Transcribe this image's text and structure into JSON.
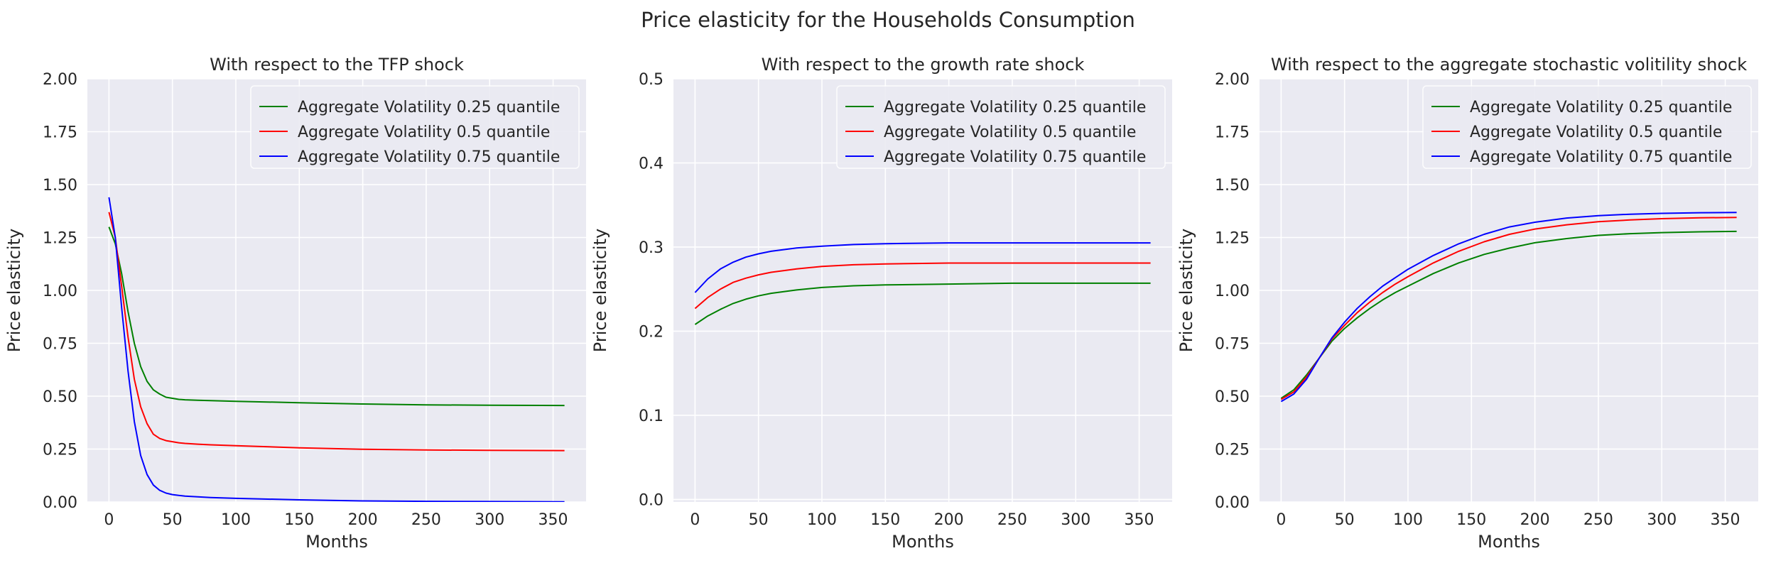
{
  "figure": {
    "suptitle": "Price elasticity for the Households Consumption"
  },
  "colors": {
    "background": "#eaeaf2",
    "grid": "#ffffff",
    "q25": "#008000",
    "q50": "#ff0000",
    "q75": "#0000ff"
  },
  "chart_data": [
    {
      "type": "line",
      "title": "With respect to the TFP shock",
      "xlabel": "Months",
      "ylabel": "Price elasticity",
      "xlim": [
        -17,
        376
      ],
      "ylim": [
        0,
        2.0
      ],
      "xticks": [
        0,
        50,
        100,
        150,
        200,
        250,
        300,
        350
      ],
      "xtick_labels": [
        "0",
        "50",
        "100",
        "150",
        "200",
        "250",
        "300",
        "350"
      ],
      "yticks": [
        0,
        0.25,
        0.5,
        0.75,
        1.0,
        1.25,
        1.5,
        1.75,
        2.0
      ],
      "ytick_labels": [
        "0.00",
        "0.25",
        "0.50",
        "0.75",
        "1.00",
        "1.25",
        "1.50",
        "1.75",
        "2.00"
      ],
      "grid": true,
      "legend": "top-right",
      "x": [
        0,
        5,
        10,
        15,
        20,
        25,
        30,
        35,
        40,
        45,
        50,
        55,
        60,
        70,
        80,
        100,
        150,
        200,
        250,
        300,
        359
      ],
      "series": [
        {
          "name": "Aggregate Volatility 0.25 quantile",
          "color": "#008000",
          "values": [
            1.3,
            1.22,
            1.08,
            0.9,
            0.75,
            0.64,
            0.57,
            0.53,
            0.51,
            0.495,
            0.49,
            0.485,
            0.483,
            0.481,
            0.479,
            0.476,
            0.469,
            0.463,
            0.459,
            0.457,
            0.456
          ]
        },
        {
          "name": "Aggregate Volatility 0.5 quantile",
          "color": "#ff0000",
          "values": [
            1.37,
            1.25,
            1.02,
            0.78,
            0.58,
            0.45,
            0.37,
            0.32,
            0.3,
            0.29,
            0.285,
            0.28,
            0.277,
            0.273,
            0.27,
            0.266,
            0.256,
            0.249,
            0.246,
            0.244,
            0.243
          ]
        },
        {
          "name": "Aggregate Volatility 0.75 quantile",
          "color": "#0000ff",
          "values": [
            1.44,
            1.25,
            0.92,
            0.62,
            0.38,
            0.22,
            0.13,
            0.08,
            0.055,
            0.042,
            0.035,
            0.031,
            0.028,
            0.024,
            0.021,
            0.017,
            0.01,
            0.005,
            0.003,
            0.002,
            0.001
          ]
        }
      ]
    },
    {
      "type": "line",
      "title": "With respect to the growth rate shock",
      "xlabel": "Months",
      "ylabel": "Price elasticity",
      "xlim": [
        -17,
        376
      ],
      "ylim": [
        -0.003,
        0.5
      ],
      "xticks": [
        0,
        50,
        100,
        150,
        200,
        250,
        300,
        350
      ],
      "xtick_labels": [
        "0",
        "50",
        "100",
        "150",
        "200",
        "250",
        "300",
        "350"
      ],
      "yticks": [
        0,
        0.1,
        0.2,
        0.3,
        0.4,
        0.5
      ],
      "ytick_labels": [
        "0.0",
        "0.1",
        "0.2",
        "0.3",
        "0.4",
        "0.5"
      ],
      "grid": true,
      "legend": "top-right",
      "x": [
        0,
        10,
        20,
        30,
        40,
        50,
        60,
        80,
        100,
        125,
        150,
        200,
        250,
        300,
        359
      ],
      "series": [
        {
          "name": "Aggregate Volatility 0.25 quantile",
          "color": "#008000",
          "values": [
            0.208,
            0.218,
            0.226,
            0.233,
            0.238,
            0.242,
            0.245,
            0.249,
            0.252,
            0.254,
            0.255,
            0.256,
            0.257,
            0.257,
            0.257
          ]
        },
        {
          "name": "Aggregate Volatility 0.5 quantile",
          "color": "#ff0000",
          "values": [
            0.227,
            0.24,
            0.25,
            0.258,
            0.263,
            0.267,
            0.27,
            0.274,
            0.277,
            0.279,
            0.28,
            0.281,
            0.281,
            0.281,
            0.281
          ]
        },
        {
          "name": "Aggregate Volatility 0.75 quantile",
          "color": "#0000ff",
          "values": [
            0.246,
            0.262,
            0.274,
            0.282,
            0.288,
            0.292,
            0.295,
            0.299,
            0.301,
            0.303,
            0.304,
            0.305,
            0.305,
            0.305,
            0.305
          ]
        }
      ]
    },
    {
      "type": "line",
      "title": "With respect to the aggregate stochastic volitility shock",
      "xlabel": "Months",
      "ylabel": "Price elasticity",
      "xlim": [
        -17,
        376
      ],
      "ylim": [
        0,
        2.0
      ],
      "xticks": [
        0,
        50,
        100,
        150,
        200,
        250,
        300,
        350
      ],
      "xtick_labels": [
        "0",
        "50",
        "100",
        "150",
        "200",
        "250",
        "300",
        "350"
      ],
      "yticks": [
        0,
        0.25,
        0.5,
        0.75,
        1.0,
        1.25,
        1.5,
        1.75,
        2.0
      ],
      "ytick_labels": [
        "0.00",
        "0.25",
        "0.50",
        "0.75",
        "1.00",
        "1.25",
        "1.50",
        "1.75",
        "2.00"
      ],
      "grid": true,
      "legend": "top-right",
      "x": [
        0,
        10,
        20,
        30,
        40,
        50,
        60,
        70,
        80,
        90,
        100,
        120,
        140,
        160,
        180,
        200,
        225,
        250,
        275,
        300,
        330,
        359
      ],
      "series": [
        {
          "name": "Aggregate Volatility 0.25 quantile",
          "color": "#008000",
          "values": [
            0.49,
            0.53,
            0.6,
            0.68,
            0.76,
            0.82,
            0.87,
            0.915,
            0.955,
            0.99,
            1.02,
            1.08,
            1.13,
            1.17,
            1.2,
            1.225,
            1.245,
            1.26,
            1.268,
            1.273,
            1.277,
            1.279
          ]
        },
        {
          "name": "Aggregate Volatility 0.5 quantile",
          "color": "#ff0000",
          "values": [
            0.485,
            0.52,
            0.59,
            0.68,
            0.77,
            0.835,
            0.895,
            0.945,
            0.99,
            1.03,
            1.065,
            1.13,
            1.185,
            1.23,
            1.265,
            1.29,
            1.31,
            1.325,
            1.333,
            1.339,
            1.343,
            1.345
          ]
        },
        {
          "name": "Aggregate Volatility 0.75 quantile",
          "color": "#0000ff",
          "values": [
            0.475,
            0.51,
            0.58,
            0.68,
            0.775,
            0.85,
            0.915,
            0.97,
            1.02,
            1.06,
            1.1,
            1.165,
            1.22,
            1.265,
            1.3,
            1.322,
            1.342,
            1.353,
            1.36,
            1.364,
            1.367,
            1.368
          ]
        }
      ]
    }
  ]
}
